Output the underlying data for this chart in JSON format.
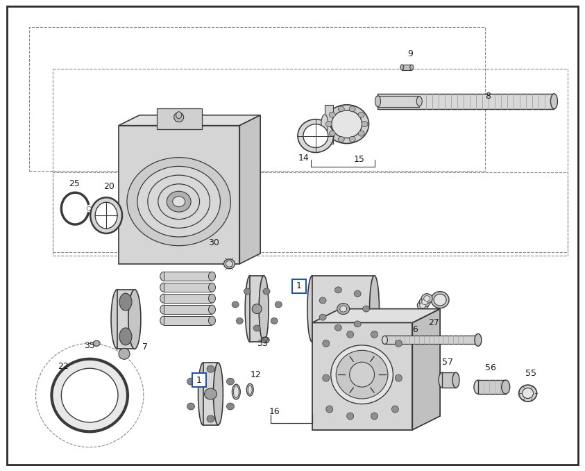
{
  "bg_color": "#ffffff",
  "border_color": "#2a2a2a",
  "line_color": "#3a3a3a",
  "part_fill": "#e8e8e8",
  "part_dark": "#c0c0c0",
  "part_edge": "#3a3a3a",
  "dash_color": "#888888",
  "label_box_color": "#2255aa",
  "text_color": "#1a1a1a",
  "figsize": [
    8.43,
    6.78
  ],
  "dpi": 100
}
